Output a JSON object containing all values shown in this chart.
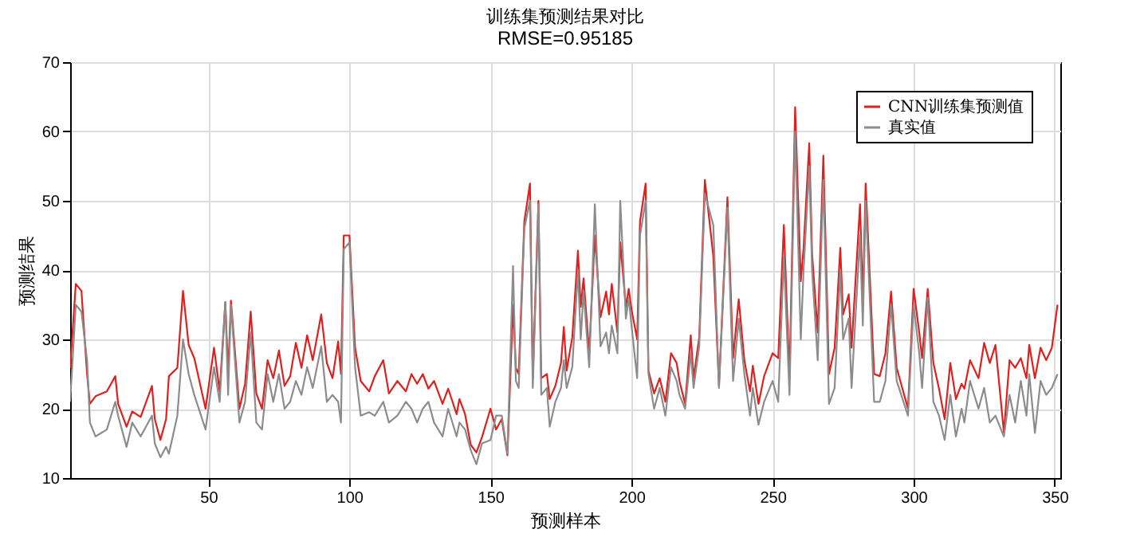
{
  "chart_data": {
    "type": "line",
    "title": "训练集预测结果对比",
    "subtitle": "RMSE=0.95185",
    "xlabel": "预测样本",
    "ylabel": "预测结果",
    "x": [
      1,
      3,
      5,
      7,
      8,
      10,
      14,
      17,
      18,
      21,
      23,
      26,
      30,
      31,
      33,
      35,
      36,
      39,
      41,
      43,
      45,
      49,
      52,
      54,
      56,
      57,
      58,
      61,
      63,
      65,
      67,
      69,
      71,
      73,
      75,
      77,
      79,
      81,
      83,
      85,
      87,
      90,
      92,
      94,
      96,
      97,
      98,
      100,
      102,
      104,
      107,
      109,
      112,
      114,
      117,
      120,
      122,
      124,
      126,
      128,
      130,
      133,
      135,
      138,
      139,
      141,
      143,
      145,
      147,
      150,
      152,
      154,
      156,
      158,
      159,
      160,
      162,
      164,
      165,
      167,
      168,
      170,
      171,
      173,
      175,
      176,
      177,
      179,
      181,
      182,
      183,
      185,
      187,
      189,
      191,
      192,
      193,
      195,
      196,
      198,
      199,
      200,
      202,
      203,
      205,
      206,
      208,
      210,
      212,
      214,
      216,
      217,
      219,
      221,
      222,
      224,
      226,
      229,
      231,
      234,
      236,
      238,
      240,
      242,
      243,
      245,
      247,
      250,
      252,
      254,
      256,
      258,
      260,
      261,
      263,
      264,
      266,
      268,
      270,
      272,
      274,
      275,
      277,
      278,
      281,
      282,
      283,
      286,
      288,
      290,
      292,
      294,
      298,
      300,
      302,
      303,
      305,
      307,
      309,
      311,
      313,
      315,
      317,
      318,
      320,
      323,
      325,
      327,
      329,
      332,
      334,
      336,
      338,
      340,
      341,
      343,
      345,
      347,
      349,
      351
    ],
    "series": [
      {
        "name": "CNN训练集预测值",
        "color": "#e0201e",
        "values": [
          25.9,
          38,
          37,
          25,
          20.7,
          21.8,
          22.5,
          24.7,
          20.7,
          17.4,
          19.6,
          18.8,
          23.3,
          18.5,
          15.5,
          18.5,
          24.7,
          25.9,
          37,
          29.2,
          27.3,
          20,
          28.8,
          22.5,
          35.4,
          25,
          35.6,
          20,
          23.6,
          34,
          22.2,
          20,
          27,
          24.4,
          28.4,
          23.3,
          24.7,
          29.5,
          25.9,
          30.6,
          27,
          33.6,
          26.6,
          24.4,
          29.7,
          25,
          45,
          45,
          28.8,
          24,
          22.5,
          24.7,
          27,
          22.2,
          24,
          22.5,
          25,
          23.6,
          25,
          22.9,
          24,
          20.7,
          22.9,
          19.2,
          21.4,
          19.2,
          14.8,
          13.7,
          15.9,
          20,
          17,
          18.5,
          13.3,
          35,
          25.9,
          25,
          47,
          52.5,
          24.4,
          50,
          24.4,
          25,
          21.4,
          23.3,
          26.6,
          31.8,
          25.5,
          30.3,
          42.8,
          34.7,
          38.8,
          28,
          45,
          33.2,
          36.9,
          33.6,
          38,
          31,
          44,
          34.7,
          37.3,
          34.3,
          30,
          47,
          52.5,
          25.5,
          22.2,
          24.4,
          21,
          28,
          26.6,
          24,
          20.7,
          30.6,
          24.4,
          30.3,
          53,
          42,
          23.3,
          50.5,
          27.3,
          35.8,
          27,
          22.5,
          26.2,
          20.7,
          24.7,
          28,
          27.3,
          46.5,
          24.4,
          63.5,
          38.4,
          43.2,
          58.3,
          42.4,
          31,
          56.5,
          25,
          28.8,
          43.2,
          33.6,
          36.5,
          28.8,
          49.5,
          35.4,
          52.5,
          25,
          24.7,
          28,
          36.9,
          25.9,
          20,
          37.3,
          31,
          27.3,
          37.3,
          26.6,
          22.9,
          18.5,
          26.6,
          21.4,
          23.6,
          22.9,
          27,
          24.4,
          29.5,
          26.6,
          29.2,
          16.6,
          27,
          25.9,
          27.3,
          24.4,
          29.2,
          24.4,
          28.8,
          27,
          28.8,
          35
        ]
      },
      {
        "name": "真实值",
        "color": "#8c8c8c",
        "values": [
          21,
          35,
          34,
          27,
          18,
          16,
          17,
          21,
          19,
          14.5,
          18,
          16,
          19,
          15,
          13,
          14.5,
          13.5,
          19,
          30,
          25,
          22,
          17,
          26,
          21,
          35.4,
          22,
          35,
          18,
          21,
          31,
          18,
          17,
          25,
          21,
          25,
          20,
          21,
          24,
          22,
          26,
          23,
          29,
          21,
          22,
          21,
          18,
          43,
          44,
          26,
          19,
          19.5,
          19,
          21,
          18,
          19,
          21,
          20,
          18,
          20,
          21,
          18,
          16,
          20,
          16,
          18,
          17,
          14,
          12,
          15,
          15.5,
          19,
          19,
          13.5,
          40.6,
          24,
          23,
          46,
          50,
          23,
          49.5,
          22,
          23,
          17.4,
          21,
          23,
          27,
          23,
          26,
          40,
          30,
          37,
          26,
          49.5,
          29,
          31,
          28,
          32,
          28,
          50,
          33,
          36,
          32,
          24.4,
          45,
          50,
          25,
          20,
          23,
          19,
          26,
          24,
          22,
          20,
          28,
          23,
          29,
          51,
          46.5,
          23,
          49,
          24,
          33,
          25,
          19,
          23,
          17.7,
          21,
          24,
          21,
          42,
          22,
          60,
          30,
          40,
          55,
          40,
          27,
          53,
          20.7,
          23,
          40,
          30,
          33,
          23,
          45,
          32,
          50,
          21,
          21,
          24,
          35,
          24,
          19,
          35,
          28,
          23,
          36,
          21,
          19,
          15.5,
          22,
          16,
          20,
          18,
          24,
          20,
          23,
          18,
          19,
          16,
          22,
          18,
          24,
          19,
          25,
          16.5,
          24,
          22,
          23,
          25
        ]
      }
    ],
    "xlim": [
      1,
      352
    ],
    "xticks": [
      50,
      100,
      150,
      200,
      250,
      300,
      350
    ],
    "ylim": [
      10,
      70
    ],
    "yticks": [
      10,
      20,
      30,
      40,
      50,
      60,
      70
    ],
    "grid": true,
    "legend": "top right",
    "marker": "none",
    "line_style": "solid"
  }
}
